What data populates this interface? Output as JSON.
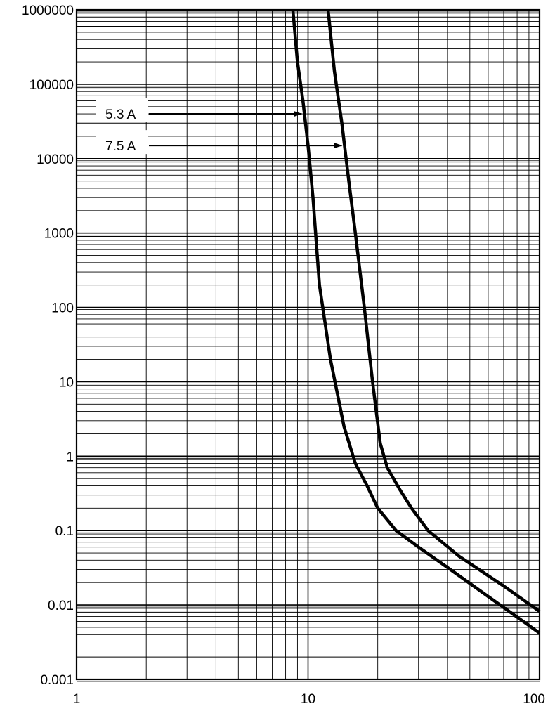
{
  "chart_data": {
    "type": "line",
    "title": "",
    "xlabel": "",
    "ylabel": "",
    "xscale": "log",
    "yscale": "log",
    "xlim": [
      1,
      100
    ],
    "ylim": [
      0.001,
      1000000
    ],
    "grid": true,
    "x_ticks": [
      "1",
      "10",
      "100"
    ],
    "y_ticks": [
      "1000000",
      "100000",
      "10000",
      "1000",
      "100",
      "10",
      "1",
      "0.1",
      "0.01",
      "0.001"
    ],
    "series": [
      {
        "name": "5.3 A",
        "points": [
          [
            8.6,
            1000000
          ],
          [
            9.0,
            200000
          ],
          [
            9.5,
            60000
          ],
          [
            10.0,
            15000
          ],
          [
            10.5,
            3000
          ],
          [
            11.2,
            200
          ],
          [
            12.5,
            20
          ],
          [
            14.3,
            2.5
          ],
          [
            16.0,
            0.8
          ],
          [
            18.0,
            0.4
          ],
          [
            20.0,
            0.2
          ],
          [
            24.0,
            0.1
          ],
          [
            30.0,
            0.06
          ],
          [
            40.0,
            0.032
          ],
          [
            60.0,
            0.013
          ],
          [
            100.0,
            0.0042
          ]
        ]
      },
      {
        "name": "7.5 A",
        "points": [
          [
            12.2,
            1000000
          ],
          [
            13.0,
            150000
          ],
          [
            14.0,
            30000
          ],
          [
            15.0,
            5000
          ],
          [
            16.0,
            1000
          ],
          [
            17.5,
            100
          ],
          [
            19.0,
            10
          ],
          [
            20.5,
            1.5
          ],
          [
            22.0,
            0.7
          ],
          [
            25.0,
            0.35
          ],
          [
            28.0,
            0.2
          ],
          [
            33.0,
            0.1
          ],
          [
            45.0,
            0.045
          ],
          [
            70.0,
            0.018
          ],
          [
            100.0,
            0.0082
          ]
        ]
      }
    ],
    "annotations": [
      {
        "text": "5.3 A",
        "series": "5.3 A",
        "y": 40000
      },
      {
        "text": "7.5 A",
        "series": "7.5 A",
        "y": 15000
      }
    ]
  }
}
